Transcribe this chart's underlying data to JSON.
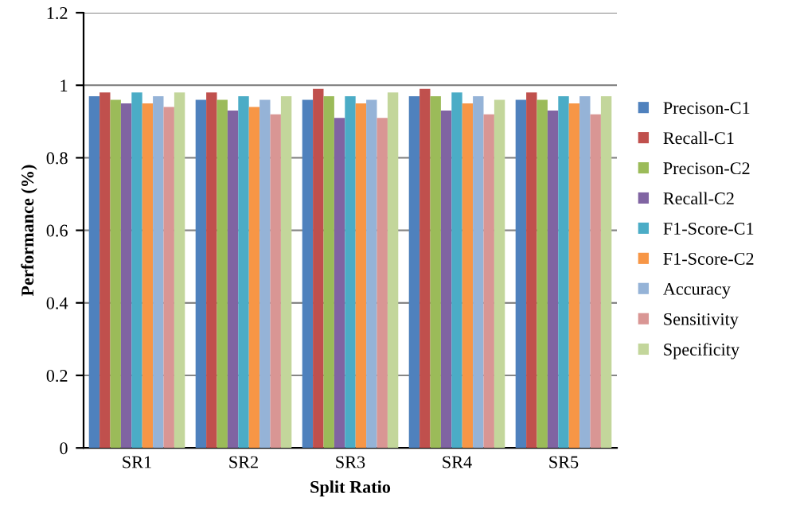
{
  "chart_data": {
    "type": "bar",
    "xlabel": "Split Ratio",
    "ylabel": "Performance (%)",
    "categories": [
      "SR1",
      "SR2",
      "SR3",
      "SR4",
      "SR5"
    ],
    "series": [
      {
        "name": "Precison-C1",
        "color": "#4f81bd",
        "values": [
          0.97,
          0.96,
          0.96,
          0.97,
          0.96
        ]
      },
      {
        "name": "Recall-C1",
        "color": "#c0504d",
        "values": [
          0.98,
          0.98,
          0.99,
          0.99,
          0.98
        ]
      },
      {
        "name": "Precison-C2",
        "color": "#9bbb59",
        "values": [
          0.96,
          0.96,
          0.97,
          0.97,
          0.96
        ]
      },
      {
        "name": "Recall-C2",
        "color": "#8064a2",
        "values": [
          0.95,
          0.93,
          0.91,
          0.93,
          0.93
        ]
      },
      {
        "name": "F1-Score-C1",
        "color": "#4bacc6",
        "values": [
          0.98,
          0.97,
          0.97,
          0.98,
          0.97
        ]
      },
      {
        "name": "F1-Score-C2",
        "color": "#f79646",
        "values": [
          0.95,
          0.94,
          0.95,
          0.95,
          0.95
        ]
      },
      {
        "name": "Accuracy",
        "color": "#95b3d7",
        "values": [
          0.97,
          0.96,
          0.96,
          0.97,
          0.97
        ]
      },
      {
        "name": "Sensitivity",
        "color": "#d99694",
        "values": [
          0.94,
          0.92,
          0.91,
          0.92,
          0.92
        ]
      },
      {
        "name": "Specificity",
        "color": "#c3d69b",
        "values": [
          0.98,
          0.97,
          0.98,
          0.96,
          0.97
        ]
      }
    ],
    "ylim": [
      0,
      1.2
    ],
    "yticks": [
      0,
      0.2,
      0.4,
      0.6,
      0.8,
      1,
      1.2
    ],
    "grid": "y",
    "legend": "right"
  }
}
